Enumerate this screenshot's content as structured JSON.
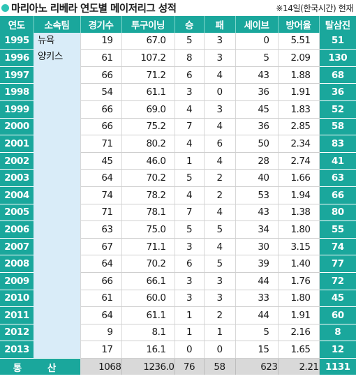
{
  "header": {
    "title": "마리아노 리베라 연도별 메이저리그 성적",
    "note": "※14일(한국시간) 현재"
  },
  "table": {
    "columns": [
      "연도",
      "소속팀",
      "경기수",
      "투구이닝",
      "승",
      "패",
      "세이브",
      "방어율",
      "탈삼진"
    ],
    "team_lines": [
      "뉴욕",
      "양키스"
    ],
    "rows": [
      [
        "1995",
        "19",
        "67.0",
        "5",
        "3",
        "0",
        "5.51",
        "51"
      ],
      [
        "1996",
        "61",
        "107.2",
        "8",
        "3",
        "5",
        "2.09",
        "130"
      ],
      [
        "1997",
        "66",
        "71.2",
        "6",
        "4",
        "43",
        "1.88",
        "68"
      ],
      [
        "1998",
        "54",
        "61.1",
        "3",
        "0",
        "36",
        "1.91",
        "36"
      ],
      [
        "1999",
        "66",
        "69.0",
        "4",
        "3",
        "45",
        "1.83",
        "52"
      ],
      [
        "2000",
        "66",
        "75.2",
        "7",
        "4",
        "36",
        "2.85",
        "58"
      ],
      [
        "2001",
        "71",
        "80.2",
        "4",
        "6",
        "50",
        "2.34",
        "83"
      ],
      [
        "2002",
        "45",
        "46.0",
        "1",
        "4",
        "28",
        "2.74",
        "41"
      ],
      [
        "2003",
        "64",
        "70.2",
        "5",
        "2",
        "40",
        "1.66",
        "63"
      ],
      [
        "2004",
        "74",
        "78.2",
        "4",
        "2",
        "53",
        "1.94",
        "66"
      ],
      [
        "2005",
        "71",
        "78.1",
        "7",
        "4",
        "43",
        "1.38",
        "80"
      ],
      [
        "2006",
        "63",
        "75.0",
        "5",
        "5",
        "34",
        "1.80",
        "55"
      ],
      [
        "2007",
        "67",
        "71.1",
        "3",
        "4",
        "30",
        "3.15",
        "74"
      ],
      [
        "2008",
        "64",
        "70.2",
        "6",
        "5",
        "39",
        "1.40",
        "77"
      ],
      [
        "2009",
        "66",
        "66.1",
        "3",
        "3",
        "44",
        "1.76",
        "72"
      ],
      [
        "2010",
        "61",
        "60.0",
        "3",
        "3",
        "33",
        "1.80",
        "45"
      ],
      [
        "2011",
        "64",
        "61.1",
        "1",
        "2",
        "44",
        "1.91",
        "60"
      ],
      [
        "2012",
        "9",
        "8.1",
        "1",
        "1",
        "5",
        "2.16",
        "8"
      ],
      [
        "2013",
        "17",
        "16.1",
        "0",
        "0",
        "15",
        "1.65",
        "12"
      ]
    ],
    "total": {
      "label": "통 산",
      "values": [
        "1068",
        "1236.0",
        "76",
        "58",
        "623",
        "2.21",
        "1131"
      ]
    }
  }
}
